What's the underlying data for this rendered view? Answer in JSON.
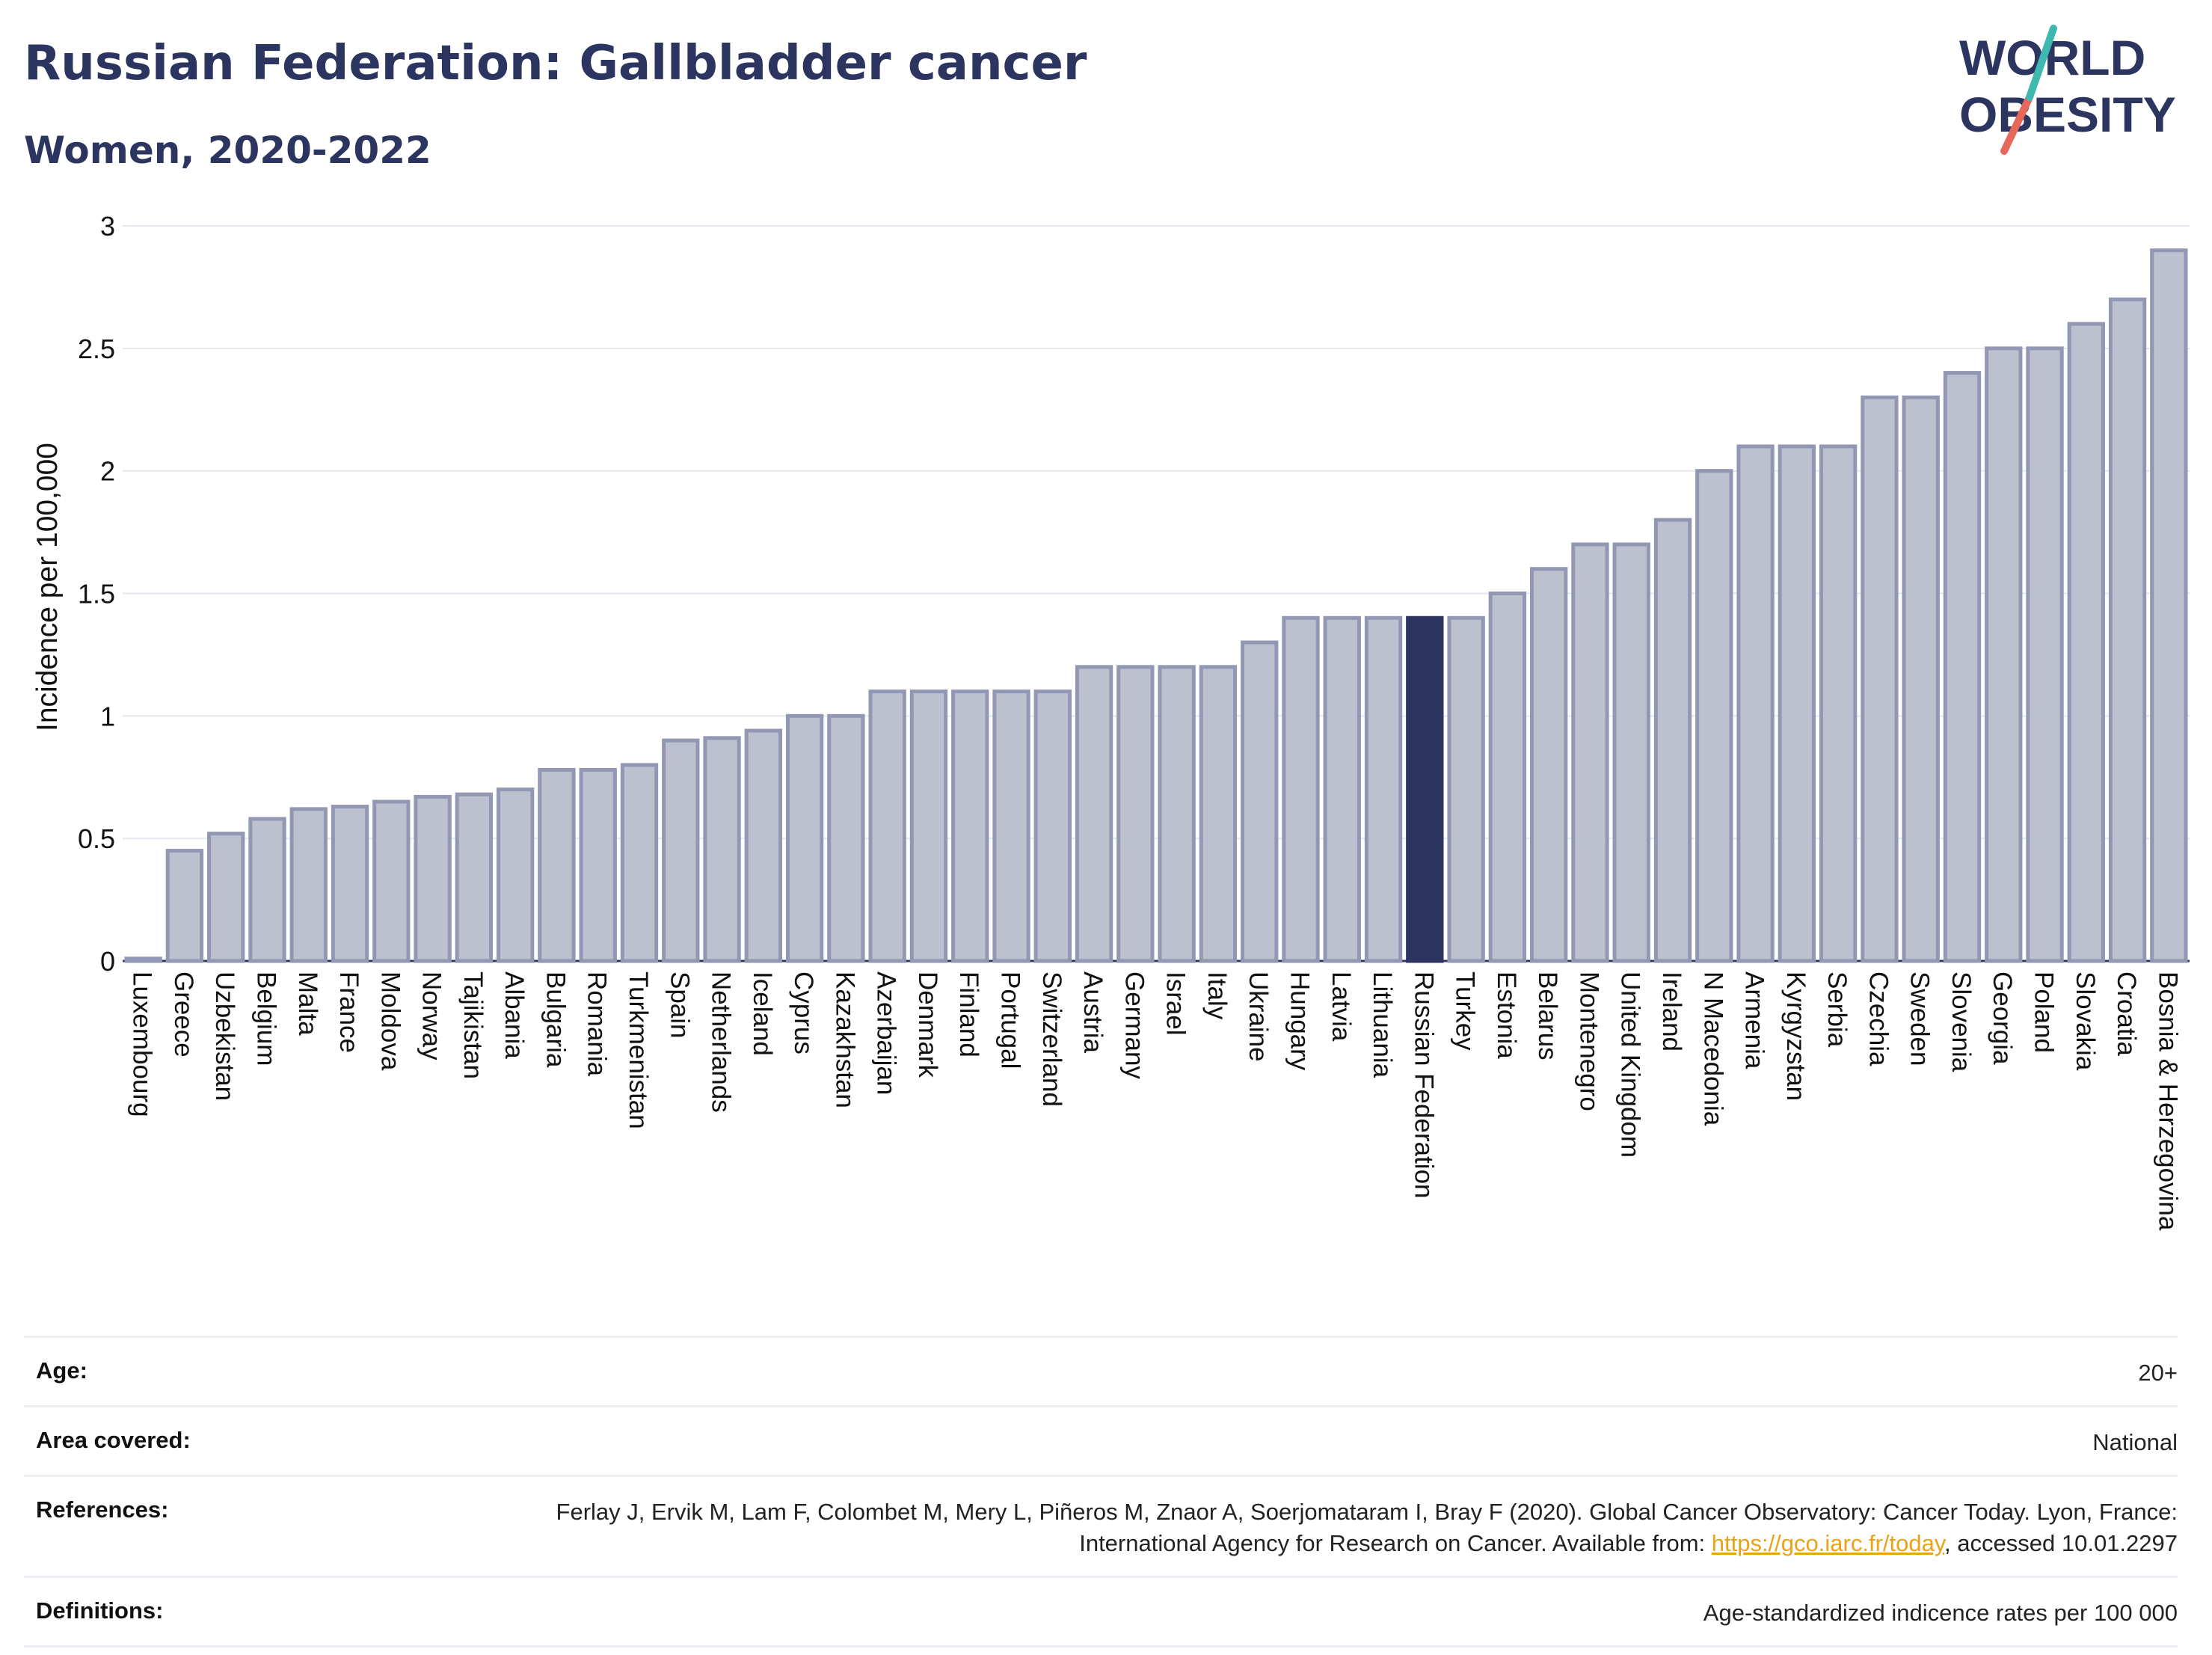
{
  "header": {
    "title": "Russian Federation: Gallbladder cancer",
    "subtitle": "Women, 2020-2022"
  },
  "logo": {
    "line1": "WORLD",
    "line2": "OBESITY"
  },
  "colors": {
    "bar": "#bcc0cf",
    "bar_border": "#9298b4",
    "highlight": "#2b3560",
    "title": "#2b3560",
    "grid": "#e6e7ee",
    "link": "#e8a317"
  },
  "chart_data": {
    "type": "bar",
    "ylabel": "Incidence per 100,000",
    "xlabel": "",
    "ylim": [
      0,
      3
    ],
    "yticks": [
      0,
      0.5,
      1,
      1.5,
      2,
      2.5,
      3
    ],
    "ytick_labels": [
      "0",
      "0.5",
      "1",
      "1.5",
      "2",
      "2.5",
      "3"
    ],
    "grid": true,
    "highlight": "Russian Federation",
    "categories": [
      "Luxembourg",
      "Greece",
      "Uzbekistan",
      "Belgium",
      "Malta",
      "France",
      "Moldova",
      "Norway",
      "Tajikistan",
      "Albania",
      "Bulgaria",
      "Romania",
      "Turkmenistan",
      "Spain",
      "Netherlands",
      "Iceland",
      "Cyprus",
      "Kazakhstan",
      "Azerbaijan",
      "Denmark",
      "Finland",
      "Portugal",
      "Switzerland",
      "Austria",
      "Germany",
      "Israel",
      "Italy",
      "Ukraine",
      "Hungary",
      "Latvia",
      "Lithuania",
      "Russian Federation",
      "Turkey",
      "Estonia",
      "Belarus",
      "Montenegro",
      "United Kingdom",
      "Ireland",
      "N Macedonia",
      "Armenia",
      "Kyrgyzstan",
      "Serbia",
      "Czechia",
      "Sweden",
      "Slovenia",
      "Georgia",
      "Poland",
      "Slovakia",
      "Croatia",
      "Bosnia & Herzegovina"
    ],
    "values": [
      0.01,
      0.45,
      0.52,
      0.58,
      0.62,
      0.63,
      0.65,
      0.67,
      0.68,
      0.7,
      0.78,
      0.78,
      0.8,
      0.9,
      0.91,
      0.94,
      1.0,
      1.0,
      1.1,
      1.1,
      1.1,
      1.1,
      1.1,
      1.2,
      1.2,
      1.2,
      1.2,
      1.3,
      1.4,
      1.4,
      1.4,
      1.4,
      1.4,
      1.5,
      1.6,
      1.7,
      1.7,
      1.8,
      2.0,
      2.1,
      2.1,
      2.1,
      2.3,
      2.3,
      2.4,
      2.5,
      2.5,
      2.6,
      2.7,
      2.9
    ]
  },
  "info": {
    "age_label": "Age:",
    "age_value": "20+",
    "area_label": "Area covered:",
    "area_value": "National",
    "references_label": "References:",
    "references_text_1": "Ferlay J, Ervik M, Lam F, Colombet M, Mery L, Piñeros M, Znaor A, Soerjomataram I, Bray F (2020). Global Cancer Observatory: Cancer Today. Lyon, France: International Agency for Research on Cancer. Available from: ",
    "references_link": "https://gco.iarc.fr/today",
    "references_text_2": ", accessed 10.01.2297",
    "definitions_label": "Definitions:",
    "definitions_value": "Age-standardized indicence rates per 100 000"
  }
}
